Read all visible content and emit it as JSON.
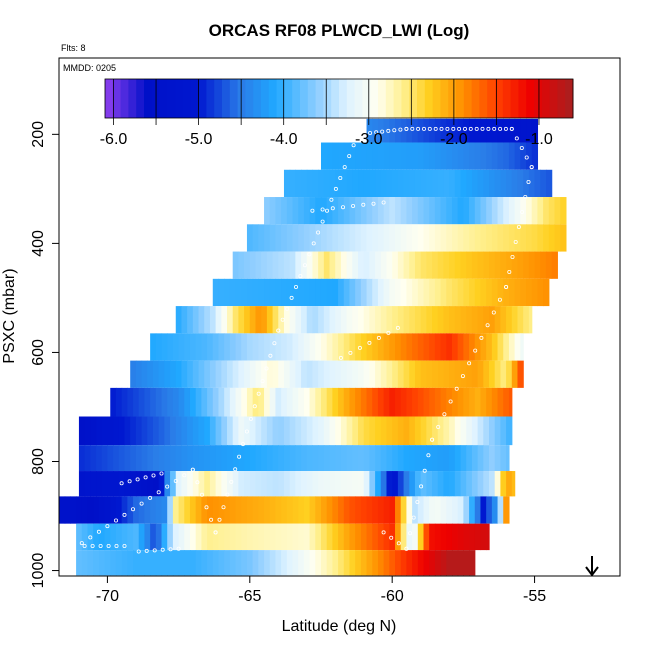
{
  "chart_data": {
    "type": "heatmap",
    "title": "ORCAS RF08 PLWCD_LWI (Log)",
    "annotations": {
      "flts": "Flts: 8",
      "mmdd": "MMDD: 0205"
    },
    "xlabel": "Latitude (deg N)",
    "ylabel": "PSXC (mbar)",
    "xlim": [
      -71.7,
      -52.0
    ],
    "ylim": [
      1010,
      60
    ],
    "x_ticks": [
      -70,
      -65,
      -60,
      -55
    ],
    "x_tick_labels": [
      "-70",
      "-65",
      "-60",
      "-55"
    ],
    "y_ticks": [
      200,
      400,
      600,
      800,
      1000
    ],
    "y_tick_labels": [
      "200",
      "400",
      "600",
      "800",
      "1000"
    ],
    "colorbar": {
      "min": -6.1,
      "max": -0.6,
      "ticks": [
        -6.0,
        -5.0,
        -4.0,
        -3.0,
        -2.0,
        -1.0
      ],
      "tick_labels": [
        "-6.0",
        "-5.0",
        "-4.0",
        "-3.0",
        "-2.0",
        "-1.0"
      ],
      "stops": [
        [
          -6.1,
          "#9040f0"
        ],
        [
          -5.6,
          "#0010c8"
        ],
        [
          -5.0,
          "#0018d0"
        ],
        [
          -4.5,
          "#2a7de8"
        ],
        [
          -4.1,
          "#20a8ff"
        ],
        [
          -3.6,
          "#90ceff"
        ],
        [
          -3.25,
          "#dff3ff"
        ],
        [
          -2.9,
          "#fffff0"
        ],
        [
          -2.6,
          "#fff090"
        ],
        [
          -2.3,
          "#ffd020"
        ],
        [
          -1.9,
          "#ff9000"
        ],
        [
          -1.5,
          "#ff4000"
        ],
        [
          -1.1,
          "#ee0000"
        ],
        [
          -0.6,
          "#a82020"
        ]
      ]
    },
    "rows": [
      {
        "p": 190,
        "x0": -60.9,
        "x1": -54.9,
        "k": [
          [
            -60.9,
            -4.4
          ],
          [
            -58,
            -4.9
          ],
          [
            -54.9,
            -5.3
          ]
        ]
      },
      {
        "p": 240,
        "x0": -62.5,
        "x1": -54.9,
        "k": [
          [
            -62.5,
            -4.1
          ],
          [
            -59,
            -4.2
          ],
          [
            -56,
            -4.6
          ],
          [
            -54.9,
            -4.9
          ]
        ]
      },
      {
        "p": 290,
        "x0": -63.8,
        "x1": -54.4,
        "k": [
          [
            -63.8,
            -4.0
          ],
          [
            -61,
            -4.1
          ],
          [
            -58,
            -4.0
          ],
          [
            -55.5,
            -4.5
          ],
          [
            -54.4,
            -4.7
          ]
        ]
      },
      {
        "p": 340,
        "x0": -64.5,
        "x1": -53.9,
        "k": [
          [
            -64.5,
            -3.6
          ],
          [
            -62.5,
            -4.1
          ],
          [
            -60,
            -3.4
          ],
          [
            -57.5,
            -4.1
          ],
          [
            -55.5,
            -3.0
          ],
          [
            -54.6,
            -2.5
          ],
          [
            -53.9,
            -2.3
          ]
        ]
      },
      {
        "p": 390,
        "x0": -65.1,
        "x1": -53.9,
        "k": [
          [
            -65.1,
            -3.9
          ],
          [
            -62.5,
            -3.5
          ],
          [
            -60.5,
            -3.2
          ],
          [
            -59,
            -2.9
          ],
          [
            -57,
            -2.6
          ],
          [
            -55,
            -2.4
          ],
          [
            -53.9,
            -2.2
          ]
        ]
      },
      {
        "p": 440,
        "x0": -65.6,
        "x1": -54.2,
        "k": [
          [
            -65.6,
            -3.7
          ],
          [
            -63.5,
            -3.4
          ],
          [
            -62.3,
            -2.5
          ],
          [
            -61,
            -3.3
          ],
          [
            -59,
            -2.5
          ],
          [
            -57,
            -2.2
          ],
          [
            -55.5,
            -2.0
          ],
          [
            -54.2,
            -1.8
          ]
        ]
      },
      {
        "p": 490,
        "x0": -66.3,
        "x1": -54.5,
        "k": [
          [
            -66.3,
            -4.0
          ],
          [
            -62,
            -4.1
          ],
          [
            -60,
            -3.0
          ],
          [
            -58,
            -2.5
          ],
          [
            -56,
            -2.1
          ],
          [
            -54.5,
            -1.9
          ]
        ]
      },
      {
        "p": 540,
        "x0": -67.6,
        "x1": -55.1,
        "k": [
          [
            -67.6,
            -4.1
          ],
          [
            -66.3,
            -3.4
          ],
          [
            -65.5,
            -2.5
          ],
          [
            -64.6,
            -1.9
          ],
          [
            -63.8,
            -2.8
          ],
          [
            -62.8,
            -3.5
          ],
          [
            -61.5,
            -3.0
          ],
          [
            -60,
            -2.6
          ],
          [
            -58,
            -2.2
          ],
          [
            -56.5,
            -2.0
          ],
          [
            -55.1,
            -2.6
          ]
        ]
      },
      {
        "p": 590,
        "x0": -68.5,
        "x1": -55.4,
        "k": [
          [
            -68.5,
            -4.1
          ],
          [
            -66.5,
            -3.9
          ],
          [
            -65,
            -3.5
          ],
          [
            -63.5,
            -3.3
          ],
          [
            -61.3,
            -2.4
          ],
          [
            -59.5,
            -1.8
          ],
          [
            -58,
            -1.4
          ],
          [
            -56.5,
            -2.2
          ],
          [
            -55.4,
            -3.1
          ]
        ]
      },
      {
        "p": 640,
        "x0": -69.2,
        "x1": -55.4,
        "k": [
          [
            -69.2,
            -4.5
          ],
          [
            -67.5,
            -4.1
          ],
          [
            -65.2,
            -3.2
          ],
          [
            -64.2,
            -2.8
          ],
          [
            -63,
            -3.4
          ],
          [
            -61,
            -3.0
          ],
          [
            -59,
            -2.2
          ],
          [
            -57,
            -2.0
          ],
          [
            -56,
            -2.6
          ],
          [
            -55.4,
            -1.4
          ]
        ]
      },
      {
        "p": 690,
        "x0": -69.9,
        "x1": -55.8,
        "k": [
          [
            -69.9,
            -5.0
          ],
          [
            -67.5,
            -4.4
          ],
          [
            -66,
            -3.5
          ],
          [
            -64.7,
            -2.5
          ],
          [
            -64,
            -3.3
          ],
          [
            -63,
            -2.9
          ],
          [
            -61.5,
            -2.0
          ],
          [
            -60,
            -1.3
          ],
          [
            -58.5,
            -1.7
          ],
          [
            -57,
            -2.1
          ],
          [
            -55.8,
            -1.6
          ]
        ]
      },
      {
        "p": 745,
        "x0": -71.0,
        "x1": -55.8,
        "k": [
          [
            -71.0,
            -5.6
          ],
          [
            -70.2,
            -5.2
          ],
          [
            -68,
            -4.6
          ],
          [
            -66.5,
            -4.1
          ],
          [
            -65.3,
            -3.1
          ],
          [
            -64,
            -3.6
          ],
          [
            -62.5,
            -3.2
          ],
          [
            -61,
            -2.4
          ],
          [
            -59.5,
            -2.1
          ],
          [
            -58,
            -2.7
          ],
          [
            -56.5,
            -3.6
          ],
          [
            -55.8,
            -4.0
          ]
        ]
      },
      {
        "p": 795,
        "x0": -71.0,
        "x1": -55.9,
        "k": [
          [
            -71.0,
            -4.9
          ],
          [
            -69,
            -4.6
          ],
          [
            -67,
            -4.3
          ],
          [
            -65,
            -4.1
          ],
          [
            -63,
            -3.9
          ],
          [
            -61,
            -3.8
          ],
          [
            -59.5,
            -4.1
          ],
          [
            -58,
            -4.2
          ],
          [
            -56.5,
            -3.6
          ],
          [
            -55.9,
            -3.8
          ]
        ]
      },
      {
        "p": 840,
        "x0": -71.0,
        "x1": -55.7,
        "k": [
          [
            -71.0,
            -5.3
          ],
          [
            -69.5,
            -5.1
          ],
          [
            -68.3,
            -5.6
          ],
          [
            -67.5,
            -3.2
          ],
          [
            -66.5,
            -2.6
          ],
          [
            -65.3,
            -3.3
          ],
          [
            -64,
            -3.4
          ],
          [
            -62.5,
            -3.1
          ],
          [
            -61,
            -3.0
          ],
          [
            -60,
            -5.2
          ],
          [
            -59,
            -3.8
          ],
          [
            -58,
            -4.1
          ],
          [
            -56.5,
            -3.4
          ],
          [
            -56.0,
            -2.0
          ],
          [
            -55.7,
            -2.2
          ]
        ]
      },
      {
        "p": 888,
        "x0": -71.7,
        "x1": -55.9,
        "k": [
          [
            -71.7,
            -5.4
          ],
          [
            -70.5,
            -5.6
          ],
          [
            -69,
            -4.6
          ],
          [
            -68,
            -4.4
          ],
          [
            -67.6,
            -2.6
          ],
          [
            -66.5,
            -1.9
          ],
          [
            -64.5,
            -2.1
          ],
          [
            -63,
            -2.3
          ],
          [
            -61.5,
            -1.6
          ],
          [
            -60,
            -1.3
          ],
          [
            -59.2,
            -3.4
          ],
          [
            -58.5,
            -3.0
          ],
          [
            -57.5,
            -3.3
          ],
          [
            -56.8,
            -5.0
          ],
          [
            -56.3,
            -4.2
          ],
          [
            -55.9,
            -1.2
          ]
        ]
      },
      {
        "p": 940,
        "x0": -71.1,
        "x1": -56.6,
        "k": [
          [
            -71.1,
            -3.8
          ],
          [
            -70.3,
            -4.1
          ],
          [
            -69,
            -3.9
          ],
          [
            -68.3,
            -4.8
          ],
          [
            -67.7,
            -3.3
          ],
          [
            -66.5,
            -2.6
          ],
          [
            -65,
            -2.7
          ],
          [
            -63,
            -2.8
          ],
          [
            -61.5,
            -2.0
          ],
          [
            -60,
            -1.4
          ],
          [
            -59.3,
            -3.4
          ],
          [
            -58.7,
            -1.2
          ],
          [
            -57.5,
            -1.0
          ],
          [
            -56.6,
            -0.9
          ]
        ]
      },
      {
        "p": 985,
        "x0": -71.1,
        "x1": -57.1,
        "k": [
          [
            -71.1,
            -3.8
          ],
          [
            -69,
            -4.0
          ],
          [
            -67,
            -4.0
          ],
          [
            -65,
            -3.7
          ],
          [
            -63.5,
            -3.2
          ],
          [
            -62,
            -2.6
          ],
          [
            -60.5,
            -1.9
          ],
          [
            -59.3,
            -1.3
          ],
          [
            -58,
            -0.7
          ],
          [
            -57.1,
            -0.7
          ]
        ]
      }
    ]
  }
}
